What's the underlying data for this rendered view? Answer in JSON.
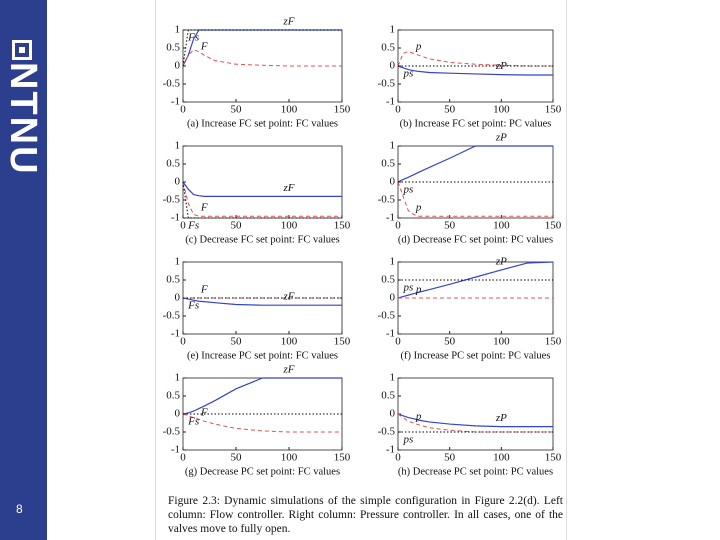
{
  "slide": {
    "logo": "NTNU",
    "page_number": "8"
  },
  "caption": "Figure 2.3: Dynamic simulations of the simple configuration in Figure 2.2(d). Left column: Flow controller. Right column: Pressure controller. In all cases, one of the valves move to fully open.",
  "chart_data": [
    {
      "type": "line",
      "subtitle": "(a) Increase FC set point: FC values",
      "x": [
        0,
        5,
        10,
        15,
        20,
        30,
        50,
        75,
        100,
        125,
        150
      ],
      "xlim": [
        0,
        150
      ],
      "ylim": [
        -1,
        1
      ],
      "xticks": [
        0,
        50,
        100,
        150
      ],
      "yticks": [
        -1,
        -0.5,
        0,
        0.5,
        1
      ],
      "series": [
        {
          "name": "zF",
          "color": "#3344cc",
          "style": "solid",
          "values": [
            0,
            0.3,
            0.75,
            1,
            1,
            1,
            1,
            1,
            1,
            1,
            1
          ]
        },
        {
          "name": "F",
          "color": "#e05050",
          "style": "dashed",
          "values": [
            0,
            0.3,
            0.45,
            0.4,
            0.3,
            0.15,
            0.05,
            0.02,
            0,
            0,
            0
          ]
        },
        {
          "name": "Fs",
          "color": "#000000",
          "style": "dotted",
          "values": [
            0,
            1,
            1,
            1,
            1,
            1,
            1,
            1,
            1,
            1,
            1
          ]
        }
      ]
    },
    {
      "type": "line",
      "subtitle": "(b) Increase FC set point: PC values",
      "x": [
        0,
        5,
        10,
        15,
        20,
        30,
        50,
        75,
        100,
        125,
        150
      ],
      "xlim": [
        0,
        150
      ],
      "ylim": [
        -1,
        1
      ],
      "xticks": [
        0,
        50,
        100,
        150
      ],
      "yticks": [
        -1,
        -0.5,
        0,
        0.5,
        1
      ],
      "series": [
        {
          "name": "zP",
          "color": "#3344cc",
          "style": "solid",
          "values": [
            0,
            -0.05,
            -0.1,
            -0.13,
            -0.15,
            -0.18,
            -0.2,
            -0.22,
            -0.24,
            -0.25,
            -0.25
          ]
        },
        {
          "name": "p",
          "color": "#e05050",
          "style": "dashed",
          "values": [
            0,
            0.35,
            0.4,
            0.35,
            0.3,
            0.2,
            0.1,
            0.05,
            0.02,
            0,
            0
          ]
        },
        {
          "name": "ps",
          "color": "#000000",
          "style": "dotted",
          "values": [
            0,
            0,
            0,
            0,
            0,
            0,
            0,
            0,
            0,
            0,
            0
          ]
        }
      ]
    },
    {
      "type": "line",
      "subtitle": "(c) Decrease FC set point: FC values",
      "x": [
        0,
        5,
        10,
        15,
        20,
        30,
        50,
        75,
        100,
        125,
        150
      ],
      "xlim": [
        0,
        150
      ],
      "ylim": [
        -1,
        1
      ],
      "xticks": [
        0,
        50,
        100,
        150
      ],
      "yticks": [
        -1,
        -0.5,
        0,
        0.5,
        1
      ],
      "series": [
        {
          "name": "zF",
          "color": "#3344cc",
          "style": "solid",
          "values": [
            0,
            -0.2,
            -0.35,
            -0.38,
            -0.4,
            -0.4,
            -0.4,
            -0.4,
            -0.4,
            -0.4,
            -0.4
          ]
        },
        {
          "name": "F",
          "color": "#e05050",
          "style": "dashed",
          "values": [
            0,
            -0.6,
            -0.9,
            -0.95,
            -0.95,
            -0.95,
            -0.95,
            -0.95,
            -0.95,
            -0.95,
            -0.95
          ]
        },
        {
          "name": "Fs",
          "color": "#000000",
          "style": "dotted",
          "values": [
            0,
            -1,
            -1,
            -1,
            -1,
            -1,
            -1,
            -1,
            -1,
            -1,
            -1
          ]
        }
      ]
    },
    {
      "type": "line",
      "subtitle": "(d) Decrease FC set point: PC values",
      "x": [
        0,
        5,
        10,
        15,
        20,
        30,
        50,
        75,
        100,
        125,
        150
      ],
      "xlim": [
        0,
        150
      ],
      "ylim": [
        -1,
        1
      ],
      "xticks": [
        0,
        50,
        100,
        150
      ],
      "yticks": [
        -1,
        -0.5,
        0,
        0.5,
        1
      ],
      "series": [
        {
          "name": "zP",
          "color": "#3344cc",
          "style": "solid",
          "values": [
            0,
            0.07,
            0.13,
            0.2,
            0.27,
            0.4,
            0.66,
            1,
            1,
            1,
            1
          ]
        },
        {
          "name": "p",
          "color": "#e05050",
          "style": "dashed",
          "values": [
            0,
            -0.4,
            -0.8,
            -0.9,
            -0.95,
            -0.95,
            -0.95,
            -0.95,
            -0.95,
            -0.95,
            -0.95
          ]
        },
        {
          "name": "ps",
          "color": "#000000",
          "style": "dotted",
          "values": [
            0,
            0,
            0,
            0,
            0,
            0,
            0,
            0,
            0,
            0,
            0
          ]
        }
      ]
    },
    {
      "type": "line",
      "subtitle": "(e) Increase PC set point: FC values",
      "x": [
        0,
        5,
        10,
        15,
        20,
        30,
        50,
        75,
        100,
        125,
        150
      ],
      "xlim": [
        0,
        150
      ],
      "ylim": [
        -1,
        1
      ],
      "xticks": [
        0,
        50,
        100,
        150
      ],
      "yticks": [
        -1,
        -0.5,
        0,
        0.5,
        1
      ],
      "series": [
        {
          "name": "zF",
          "color": "#3344cc",
          "style": "solid",
          "values": [
            0,
            -0.03,
            -0.06,
            -0.09,
            -0.1,
            -0.13,
            -0.18,
            -0.2,
            -0.2,
            -0.2,
            -0.2
          ]
        },
        {
          "name": "F",
          "color": "#e05050",
          "style": "dashed",
          "values": [
            0,
            0,
            0,
            0,
            0,
            0,
            0,
            0,
            0,
            0,
            0
          ]
        },
        {
          "name": "Fs",
          "color": "#000000",
          "style": "dotted",
          "values": [
            0,
            0,
            0,
            0,
            0,
            0,
            0,
            0,
            0,
            0,
            0
          ]
        }
      ]
    },
    {
      "type": "line",
      "subtitle": "(f) Increase PC set point: PC values",
      "x": [
        0,
        5,
        10,
        15,
        20,
        30,
        50,
        75,
        100,
        125,
        150
      ],
      "xlim": [
        0,
        150
      ],
      "ylim": [
        -1,
        1
      ],
      "xticks": [
        0,
        50,
        100,
        150
      ],
      "yticks": [
        -1,
        -0.5,
        0,
        0.5,
        1
      ],
      "series": [
        {
          "name": "zP",
          "color": "#3344cc",
          "style": "solid",
          "values": [
            0,
            0.04,
            0.08,
            0.12,
            0.16,
            0.23,
            0.38,
            0.58,
            0.78,
            0.97,
            1
          ]
        },
        {
          "name": "p",
          "color": "#e05050",
          "style": "dashed",
          "values": [
            0,
            0,
            0,
            0,
            0,
            0,
            0,
            0,
            0,
            0,
            0
          ]
        },
        {
          "name": "ps",
          "color": "#000000",
          "style": "dotted",
          "values": [
            0.5,
            0.5,
            0.5,
            0.5,
            0.5,
            0.5,
            0.5,
            0.5,
            0.5,
            0.5,
            0.5
          ]
        }
      ]
    },
    {
      "type": "line",
      "subtitle": "(g) Decrease PC set point: FC values",
      "x": [
        0,
        5,
        10,
        15,
        20,
        30,
        50,
        75,
        100,
        125,
        150
      ],
      "xlim": [
        0,
        150
      ],
      "ylim": [
        -1,
        1
      ],
      "xticks": [
        0,
        50,
        100,
        150
      ],
      "yticks": [
        -1,
        -0.5,
        0,
        0.5,
        1
      ],
      "series": [
        {
          "name": "zF",
          "color": "#3344cc",
          "style": "solid",
          "values": [
            0,
            0.03,
            0.08,
            0.15,
            0.22,
            0.37,
            0.7,
            1,
            1,
            1,
            1
          ]
        },
        {
          "name": "F",
          "color": "#e05050",
          "style": "dashed",
          "values": [
            0,
            -0.05,
            -0.1,
            -0.15,
            -0.2,
            -0.28,
            -0.4,
            -0.47,
            -0.5,
            -0.5,
            -0.5
          ]
        },
        {
          "name": "Fs",
          "color": "#000000",
          "style": "dotted",
          "values": [
            0,
            0,
            0,
            0,
            0,
            0,
            0,
            0,
            0,
            0,
            0
          ]
        }
      ]
    },
    {
      "type": "line",
      "subtitle": "(h) Decrease PC set point: PC values",
      "x": [
        0,
        5,
        10,
        15,
        20,
        30,
        50,
        75,
        100,
        125,
        150
      ],
      "xlim": [
        0,
        150
      ],
      "ylim": [
        -1,
        1
      ],
      "xticks": [
        0,
        50,
        100,
        150
      ],
      "yticks": [
        -1,
        -0.5,
        0,
        0.5,
        1
      ],
      "series": [
        {
          "name": "zP",
          "color": "#3344cc",
          "style": "solid",
          "values": [
            0,
            -0.05,
            -0.1,
            -0.13,
            -0.17,
            -0.22,
            -0.28,
            -0.33,
            -0.35,
            -0.35,
            -0.35
          ]
        },
        {
          "name": "p",
          "color": "#e05050",
          "style": "dashed",
          "values": [
            0,
            -0.1,
            -0.2,
            -0.25,
            -0.3,
            -0.38,
            -0.45,
            -0.5,
            -0.5,
            -0.5,
            -0.5
          ]
        },
        {
          "name": "ps",
          "color": "#000000",
          "style": "dotted",
          "values": [
            -0.5,
            -0.5,
            -0.5,
            -0.5,
            -0.5,
            -0.5,
            -0.5,
            -0.5,
            -0.5,
            -0.5,
            -0.5
          ]
        }
      ]
    }
  ]
}
